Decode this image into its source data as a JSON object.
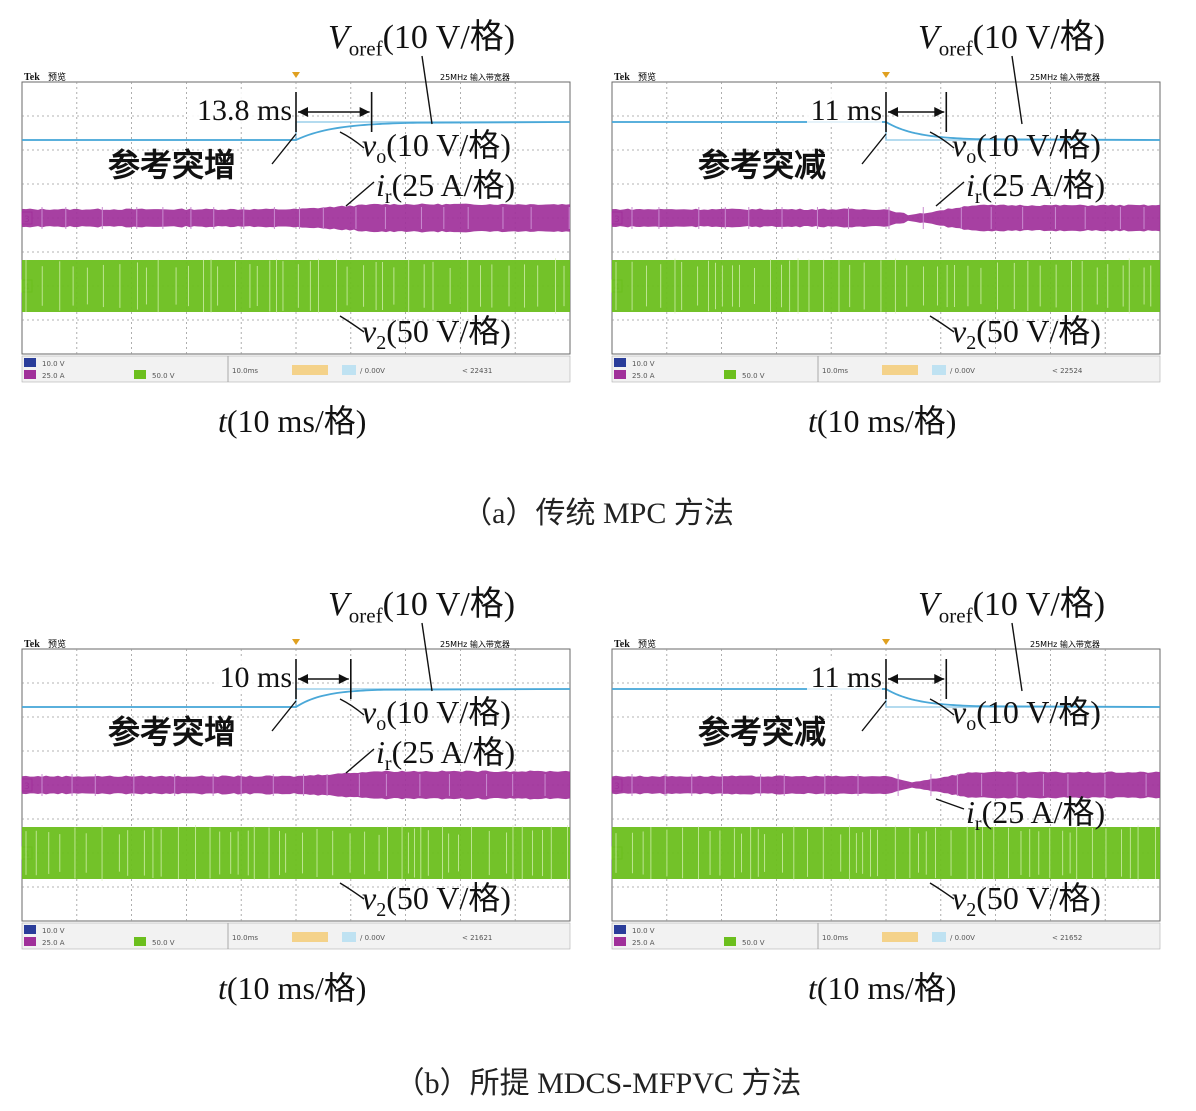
{
  "captions": {
    "a": "（a）传统 MPC 方法",
    "b": "（b）所提 MDCS-MFPVC 方法"
  },
  "common": {
    "brand": "Tek",
    "mode": "预览",
    "header_right": "25MHz 输入带宽器",
    "ch1_scale": "10.0 V",
    "ch3_scale": "25.0 A",
    "ch4_scale": "50.0 V",
    "timebase": "10.0ms",
    "trig_level": "0.00V",
    "t_prefix": "t",
    "t_label": "(10 ms/格)",
    "voref_sym": "V",
    "voref_sub": "oref",
    "voref_scale": "(10 V/格)",
    "vo_sym": "v",
    "vo_sub": "o",
    "vo_scale": "(10 V/格)",
    "ir_sym": "i",
    "ir_sub": "r",
    "ir_scale": "(25 A/格)",
    "v2_sym": "v",
    "v2_sub": "2",
    "v2_scale": "(50 V/格)",
    "ch_marker_vo": "1",
    "ch_marker_ir": "3",
    "ch_marker_v2": "4"
  },
  "colors": {
    "vo": "#4aa8d8",
    "ir": "#a0309a",
    "v2": "#6cbf1e",
    "grid": "#9a9a9a",
    "frame": "#6a6a6a"
  },
  "chart_data": [
    {
      "type": "line",
      "id": "a-left",
      "event": "参考突增",
      "delay_label": "13.8 ms",
      "delay_ms": 13.8,
      "xlim": [
        0,
        100
      ],
      "x_unit": "ms",
      "x_divisions": 10,
      "step_time_ms": 50,
      "series": [
        {
          "name": "Voref",
          "scale_per_div": "10 V",
          "step": "increase"
        },
        {
          "name": "vo",
          "scale_per_div": "10 V",
          "step": "increase",
          "settling_ms": 13.8
        },
        {
          "name": "ir",
          "scale_per_div": "25 A"
        },
        {
          "name": "v2",
          "scale_per_div": "50 V"
        }
      ],
      "footer_time": "22431"
    },
    {
      "type": "line",
      "id": "a-right",
      "event": "参考突减",
      "delay_label": "11 ms",
      "delay_ms": 11,
      "xlim": [
        0,
        100
      ],
      "x_unit": "ms",
      "x_divisions": 10,
      "step_time_ms": 50,
      "series": [
        {
          "name": "Voref",
          "scale_per_div": "10 V",
          "step": "decrease"
        },
        {
          "name": "vo",
          "scale_per_div": "10 V",
          "step": "decrease",
          "settling_ms": 11
        },
        {
          "name": "ir",
          "scale_per_div": "25 A"
        },
        {
          "name": "v2",
          "scale_per_div": "50 V"
        }
      ],
      "footer_time": "22524"
    },
    {
      "type": "line",
      "id": "b-left",
      "event": "参考突增",
      "delay_label": "10 ms",
      "delay_ms": 10,
      "xlim": [
        0,
        100
      ],
      "x_unit": "ms",
      "x_divisions": 10,
      "step_time_ms": 50,
      "series": [
        {
          "name": "Voref",
          "scale_per_div": "10 V",
          "step": "increase"
        },
        {
          "name": "vo",
          "scale_per_div": "10 V",
          "step": "increase",
          "settling_ms": 10
        },
        {
          "name": "ir",
          "scale_per_div": "25 A"
        },
        {
          "name": "v2",
          "scale_per_div": "50 V"
        }
      ],
      "footer_time": "21621"
    },
    {
      "type": "line",
      "id": "b-right",
      "event": "参考突减",
      "delay_label": "11 ms",
      "delay_ms": 11,
      "xlim": [
        0,
        100
      ],
      "x_unit": "ms",
      "x_divisions": 10,
      "step_time_ms": 50,
      "series": [
        {
          "name": "Voref",
          "scale_per_div": "10 V",
          "step": "decrease"
        },
        {
          "name": "vo",
          "scale_per_div": "10 V",
          "step": "decrease",
          "settling_ms": 11
        },
        {
          "name": "ir",
          "scale_per_div": "25 A"
        },
        {
          "name": "v2",
          "scale_per_div": "50 V"
        }
      ],
      "footer_time": "21652"
    }
  ]
}
